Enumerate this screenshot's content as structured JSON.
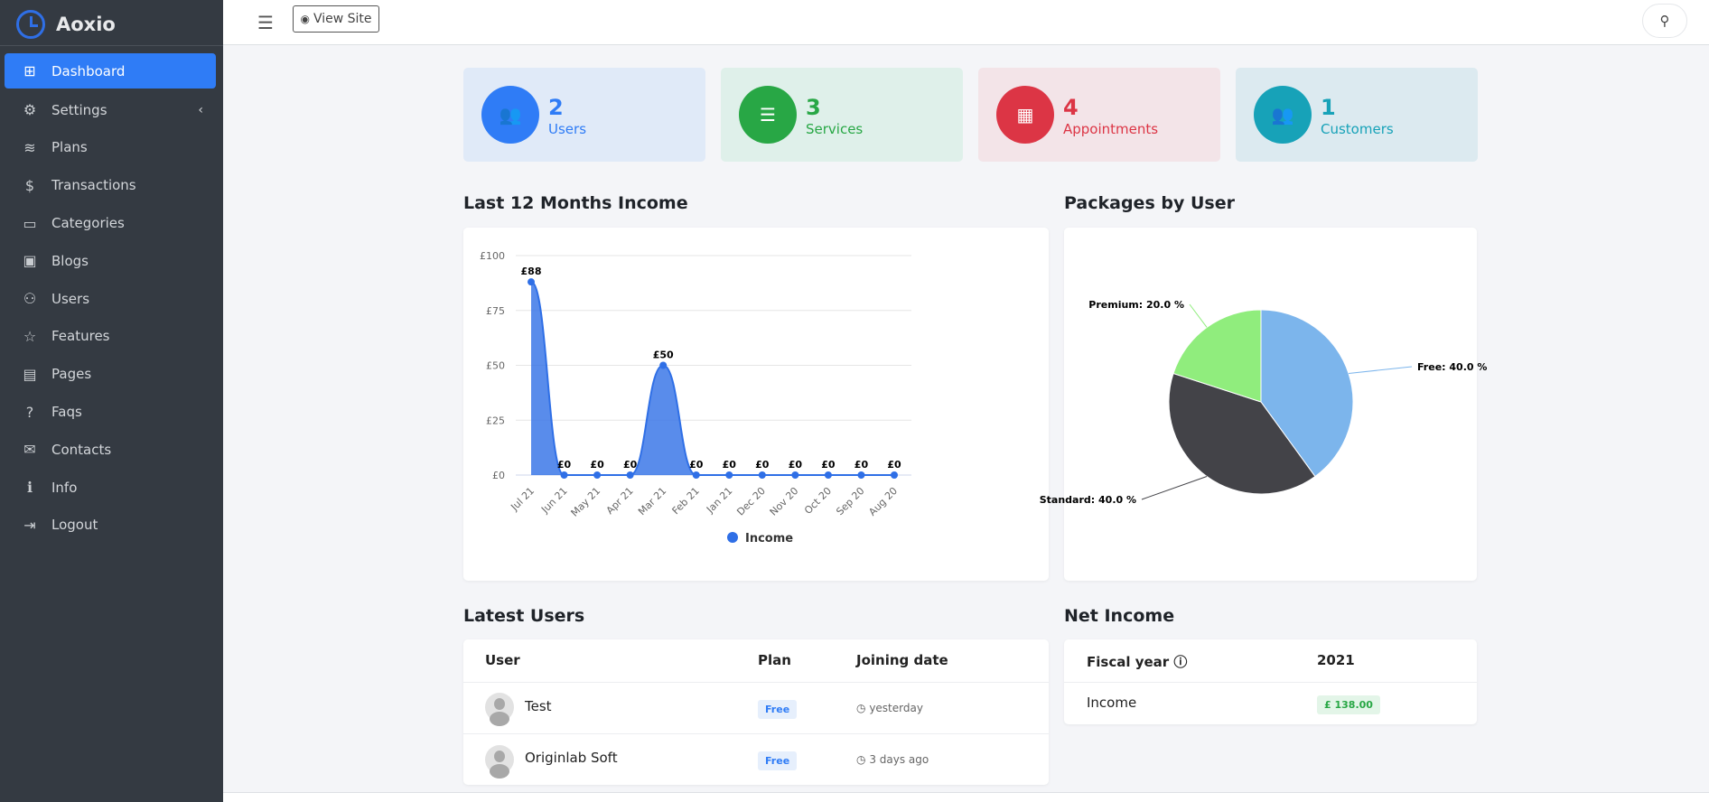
{
  "app": {
    "name": "Aoxio"
  },
  "sidebar": {
    "items": [
      {
        "label": "Dashboard",
        "icon": "grid-icon",
        "glyph": "⊞"
      },
      {
        "label": "Settings",
        "icon": "gear-icon",
        "glyph": "⚙"
      },
      {
        "label": "Plans",
        "icon": "layers-icon",
        "glyph": "≋"
      },
      {
        "label": "Transactions",
        "icon": "dollar-icon",
        "glyph": "$"
      },
      {
        "label": "Categories",
        "icon": "folder-icon",
        "glyph": "▭"
      },
      {
        "label": "Blogs",
        "icon": "image-icon",
        "glyph": "▣"
      },
      {
        "label": "Users",
        "icon": "users-icon",
        "glyph": "⚇"
      },
      {
        "label": "Features",
        "icon": "star-icon",
        "glyph": "☆"
      },
      {
        "label": "Pages",
        "icon": "layout-icon",
        "glyph": "▤"
      },
      {
        "label": "Faqs",
        "icon": "question-icon",
        "glyph": "?"
      },
      {
        "label": "Contacts",
        "icon": "message-icon",
        "glyph": "✉"
      },
      {
        "label": "Info",
        "icon": "info-icon",
        "glyph": "ℹ"
      },
      {
        "label": "Logout",
        "icon": "logout-icon",
        "glyph": "⇥"
      }
    ]
  },
  "topbar": {
    "view_site": "View Site"
  },
  "stats": [
    {
      "value": "2",
      "label": "Users",
      "color": "#2f7cf6",
      "bg": "#e0eaf8"
    },
    {
      "value": "3",
      "label": "Services",
      "color": "#28a745",
      "bg": "#dff0ea"
    },
    {
      "value": "4",
      "label": "Appointments",
      "color": "#dc3545",
      "bg": "#f3e4e8"
    },
    {
      "value": "1",
      "label": "Customers",
      "color": "#17a2b8",
      "bg": "#dceaf0"
    }
  ],
  "income_section": {
    "title": "Last 12 Months Income"
  },
  "packages_section": {
    "title": "Packages by User"
  },
  "chart_data": [
    {
      "type": "area",
      "title": "Last 12 Months Income",
      "categories": [
        "Jul 21",
        "Jun 21",
        "May 21",
        "Apr 21",
        "Mar 21",
        "Feb 21",
        "Jan 21",
        "Dec 20",
        "Nov 20",
        "Oct 20",
        "Sep 20",
        "Aug 20"
      ],
      "series": [
        {
          "name": "Income",
          "values": [
            88,
            0,
            0,
            0,
            50,
            0,
            0,
            0,
            0,
            0,
            0,
            0
          ],
          "color": "#2f6fe6"
        }
      ],
      "data_labels": [
        "£88",
        "£0",
        "£0",
        "£0",
        "£50",
        "£0",
        "£0",
        "£0",
        "£0",
        "£0",
        "£0",
        "£0"
      ],
      "ylim": [
        0,
        100
      ],
      "yticks": [
        "£0",
        "£25",
        "£50",
        "£75",
        "£100"
      ],
      "legend": "bottom"
    },
    {
      "type": "pie",
      "title": "Packages by User",
      "slices": [
        {
          "name": "Free",
          "value": 40.0,
          "label": "Free: 40.0 %",
          "color": "#7cb5ec"
        },
        {
          "name": "Standard",
          "value": 40.0,
          "label": "Standard: 40.0 %",
          "color": "#434348"
        },
        {
          "name": "Premium",
          "value": 20.0,
          "label": "Premium: 20.0 %",
          "color": "#90ed7d"
        }
      ]
    }
  ],
  "latest_users": {
    "title": "Latest Users",
    "headers": [
      "User",
      "Plan",
      "Joining date"
    ],
    "rows": [
      {
        "name": "Test",
        "plan": "Free",
        "joined": "yesterday"
      },
      {
        "name": "Originlab Soft",
        "plan": "Free",
        "joined": "3 days ago"
      }
    ]
  },
  "net_income": {
    "title": "Net Income",
    "header_label": "Fiscal year",
    "header_year": "2021",
    "row_label": "Income",
    "row_value": "£ 138.00"
  }
}
